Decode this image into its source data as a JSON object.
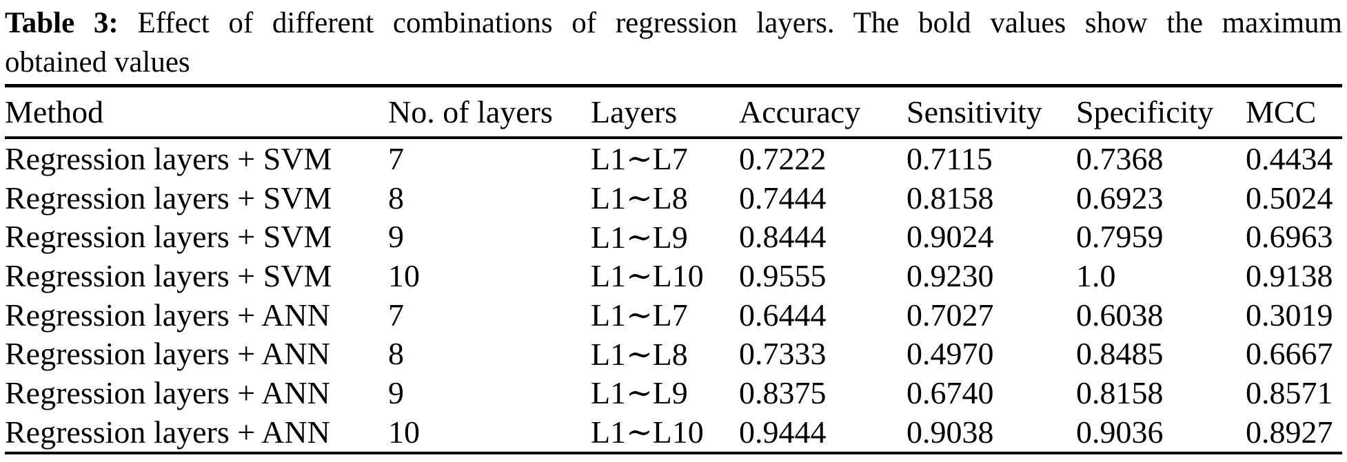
{
  "caption": {
    "label": "Table 3:",
    "line1_rest": "Effect of different combinations of regression layers. The bold values show the maximum",
    "line2": "obtained values"
  },
  "table": {
    "columns": [
      "Method",
      "No. of layers",
      "Layers",
      "Accuracy",
      "Sensitivity",
      "Specificity",
      "MCC"
    ],
    "rows": [
      [
        "Regression layers + SVM",
        "7",
        "L1∼L7",
        "0.7222",
        "0.7115",
        "0.7368",
        "0.4434"
      ],
      [
        "Regression layers + SVM",
        "8",
        "L1∼L8",
        "0.7444",
        "0.8158",
        "0.6923",
        "0.5024"
      ],
      [
        "Regression layers + SVM",
        "9",
        "L1∼L9",
        "0.8444",
        "0.9024",
        "0.7959",
        "0.6963"
      ],
      [
        "Regression layers + SVM",
        "10",
        "L1∼L10",
        "0.9555",
        "0.9230",
        "1.0",
        "0.9138"
      ],
      [
        "Regression layers + ANN",
        "7",
        "L1∼L7",
        "0.6444",
        "0.7027",
        "0.6038",
        "0.3019"
      ],
      [
        "Regression layers + ANN",
        "8",
        "L1∼L8",
        "0.7333",
        "0.4970",
        "0.8485",
        "0.6667"
      ],
      [
        "Regression layers + ANN",
        "9",
        "L1∼L9",
        "0.8375",
        "0.6740",
        "0.8158",
        "0.8571"
      ],
      [
        "Regression layers + ANN",
        "10",
        "L1∼L10",
        "0.9444",
        "0.9038",
        "0.9036",
        "0.8927"
      ]
    ],
    "text_color": "#000000",
    "background_color": "#ffffff"
  }
}
